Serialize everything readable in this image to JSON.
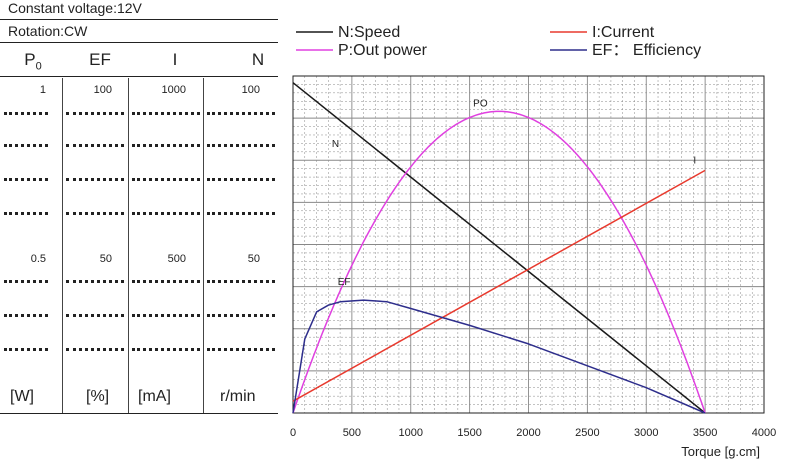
{
  "header": {
    "voltage": "Constant voltage:12V",
    "rotation": "Rotation:CW"
  },
  "columns": [
    {
      "name": "P",
      "sub": "0",
      "top": "1",
      "mid": "0.5",
      "unit": "[W]"
    },
    {
      "name": "EF",
      "sub": "",
      "top": "100",
      "mid": "50",
      "unit": "[%]"
    },
    {
      "name": "I",
      "sub": "",
      "top": "1000",
      "mid": "500",
      "unit": "[mA]"
    },
    {
      "name": "N",
      "sub": "",
      "top": "100",
      "mid": "50",
      "unit": "r/min"
    }
  ],
  "colors": {
    "speed": "#1a1a1a",
    "power": "#e040e0",
    "current": "#e83a2e",
    "efficiency": "#2e2e8c",
    "grid": "#888888"
  },
  "chart_data": {
    "type": "line",
    "xlabel": "Torque [g.cm]",
    "xlim": [
      0,
      4000
    ],
    "xticks": [
      0,
      500,
      1000,
      1500,
      2000,
      2500,
      3000,
      3500,
      4000
    ],
    "ylim": [
      0,
      100
    ],
    "grid": true,
    "legend": [
      {
        "label": "N:Speed",
        "series": "speed"
      },
      {
        "label": "P:Out power",
        "series": "power"
      },
      {
        "label": "I:Current",
        "series": "current"
      },
      {
        "label": "EF： Efficiency",
        "series": "efficiency"
      }
    ],
    "series": [
      {
        "name": "N",
        "key": "speed",
        "x": [
          0,
          3500
        ],
        "y": [
          98,
          0
        ]
      },
      {
        "name": "PO",
        "key": "power",
        "x": [
          0,
          500,
          1000,
          1500,
          1750,
          2000,
          2500,
          3000,
          3500
        ],
        "y": [
          0,
          59,
          80,
          88.5,
          89.5,
          88.5,
          80,
          59,
          0
        ]
      },
      {
        "name": "I",
        "key": "current",
        "x": [
          0,
          3500
        ],
        "y": [
          3.5,
          72
        ]
      },
      {
        "name": "EF",
        "key": "efficiency",
        "x": [
          0,
          100,
          200,
          300,
          400,
          600,
          800,
          1000,
          1500,
          2000,
          2500,
          3000,
          3500
        ],
        "y": [
          0,
          22,
          30,
          32,
          33,
          33.5,
          33,
          31,
          26,
          20.5,
          14,
          7.5,
          0
        ]
      }
    ]
  }
}
